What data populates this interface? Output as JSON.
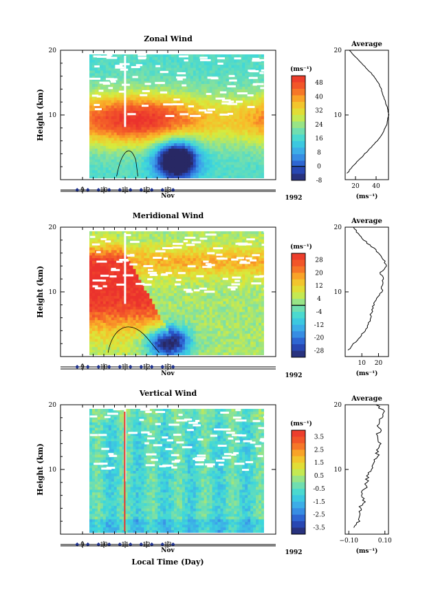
{
  "chart_data": [
    {
      "type": "heatmap",
      "title": "Zonal Wind",
      "ylabel": "Height (km)",
      "ylim": [
        0,
        20
      ],
      "y_ticks": [
        "20",
        "10"
      ],
      "x_ticks": [
        "9",
        "10",
        "11",
        "12",
        "13"
      ],
      "xlabel": "Nov",
      "year": "1992",
      "colorbar": {
        "unit": "(ms⁻¹)",
        "labels": [
          "48",
          "40",
          "32",
          "24",
          "16",
          "8",
          "0",
          "-8"
        ],
        "range": [
          -8,
          52
        ],
        "zero_contour": 0
      },
      "average_profile": {
        "title": "Average",
        "xlabel": "(ms⁻¹)",
        "x_ticks": [
          "20",
          "40"
        ],
        "xlim": [
          10,
          52
        ],
        "y_ticks": [
          "20",
          "10"
        ],
        "heights": [
          1,
          2,
          3,
          4,
          5,
          6,
          7,
          8,
          9,
          10,
          11,
          12,
          13,
          14,
          15,
          16,
          17,
          18,
          19,
          20
        ],
        "values": [
          12,
          17,
          23,
          29,
          35,
          41,
          46,
          49,
          51,
          52,
          51,
          49,
          47,
          45,
          42,
          38,
          32,
          26,
          20,
          14
        ]
      }
    },
    {
      "type": "heatmap",
      "title": "Meridional Wind",
      "ylabel": "Height (km)",
      "ylim": [
        0,
        20
      ],
      "y_ticks": [
        "20",
        "10"
      ],
      "x_ticks": [
        "9",
        "10",
        "11",
        "12",
        "13"
      ],
      "xlabel": "Nov",
      "year": "1992",
      "colorbar": {
        "unit": "(ms⁻¹)",
        "labels": [
          "28",
          "20",
          "12",
          "4",
          "-4",
          "-12",
          "-20",
          "-28"
        ],
        "range": [
          -32,
          32
        ],
        "zero_contour": 0
      },
      "average_profile": {
        "title": "Average",
        "xlabel": "(ms⁻¹)",
        "x_ticks": [
          "10",
          "20"
        ],
        "xlim": [
          0,
          26
        ],
        "y_ticks": [
          "20",
          "10"
        ],
        "heights": [
          1,
          2,
          3,
          4,
          5,
          6,
          7,
          8,
          9,
          10,
          11,
          12,
          13,
          14,
          15,
          16,
          17,
          18,
          19,
          20
        ],
        "values": [
          2,
          5,
          9,
          12,
          14,
          15,
          16,
          17,
          19,
          22,
          22,
          23,
          21,
          25,
          23,
          20,
          16,
          11,
          8,
          5
        ]
      }
    },
    {
      "type": "heatmap",
      "title": "Vertical Wind",
      "ylabel": "Height (km)",
      "ylim": [
        0,
        20
      ],
      "y_ticks": [
        "20",
        "10"
      ],
      "x_ticks": [
        "9",
        "10",
        "11",
        "12",
        "13"
      ],
      "xlabel": "Nov",
      "xaxis_title": "Local Time (Day)",
      "year": "1992",
      "colorbar": {
        "unit": "(ms⁻¹)",
        "labels": [
          "3.5",
          "2.5",
          "1.5",
          "0.5",
          "-0.5",
          "-1.5",
          "-2.5",
          "-3.5"
        ],
        "range": [
          -4,
          4
        ]
      },
      "average_profile": {
        "title": "Average",
        "xlabel": "(ms⁻¹)",
        "x_ticks": [
          "−0.10",
          "0.10"
        ],
        "xlim": [
          -0.12,
          0.12
        ],
        "y_ticks": [
          "20",
          "10"
        ],
        "heights": [
          1,
          2,
          3,
          4,
          5,
          6,
          7,
          8,
          9,
          10,
          11,
          12,
          13,
          14,
          15,
          16,
          17,
          18,
          19,
          20
        ],
        "values": [
          -0.06,
          -0.05,
          -0.04,
          -0.04,
          -0.02,
          -0.03,
          -0.01,
          0.0,
          0.01,
          0.02,
          0.04,
          0.06,
          0.05,
          0.08,
          0.05,
          0.07,
          0.06,
          0.08,
          0.09,
          0.05
        ]
      }
    }
  ]
}
